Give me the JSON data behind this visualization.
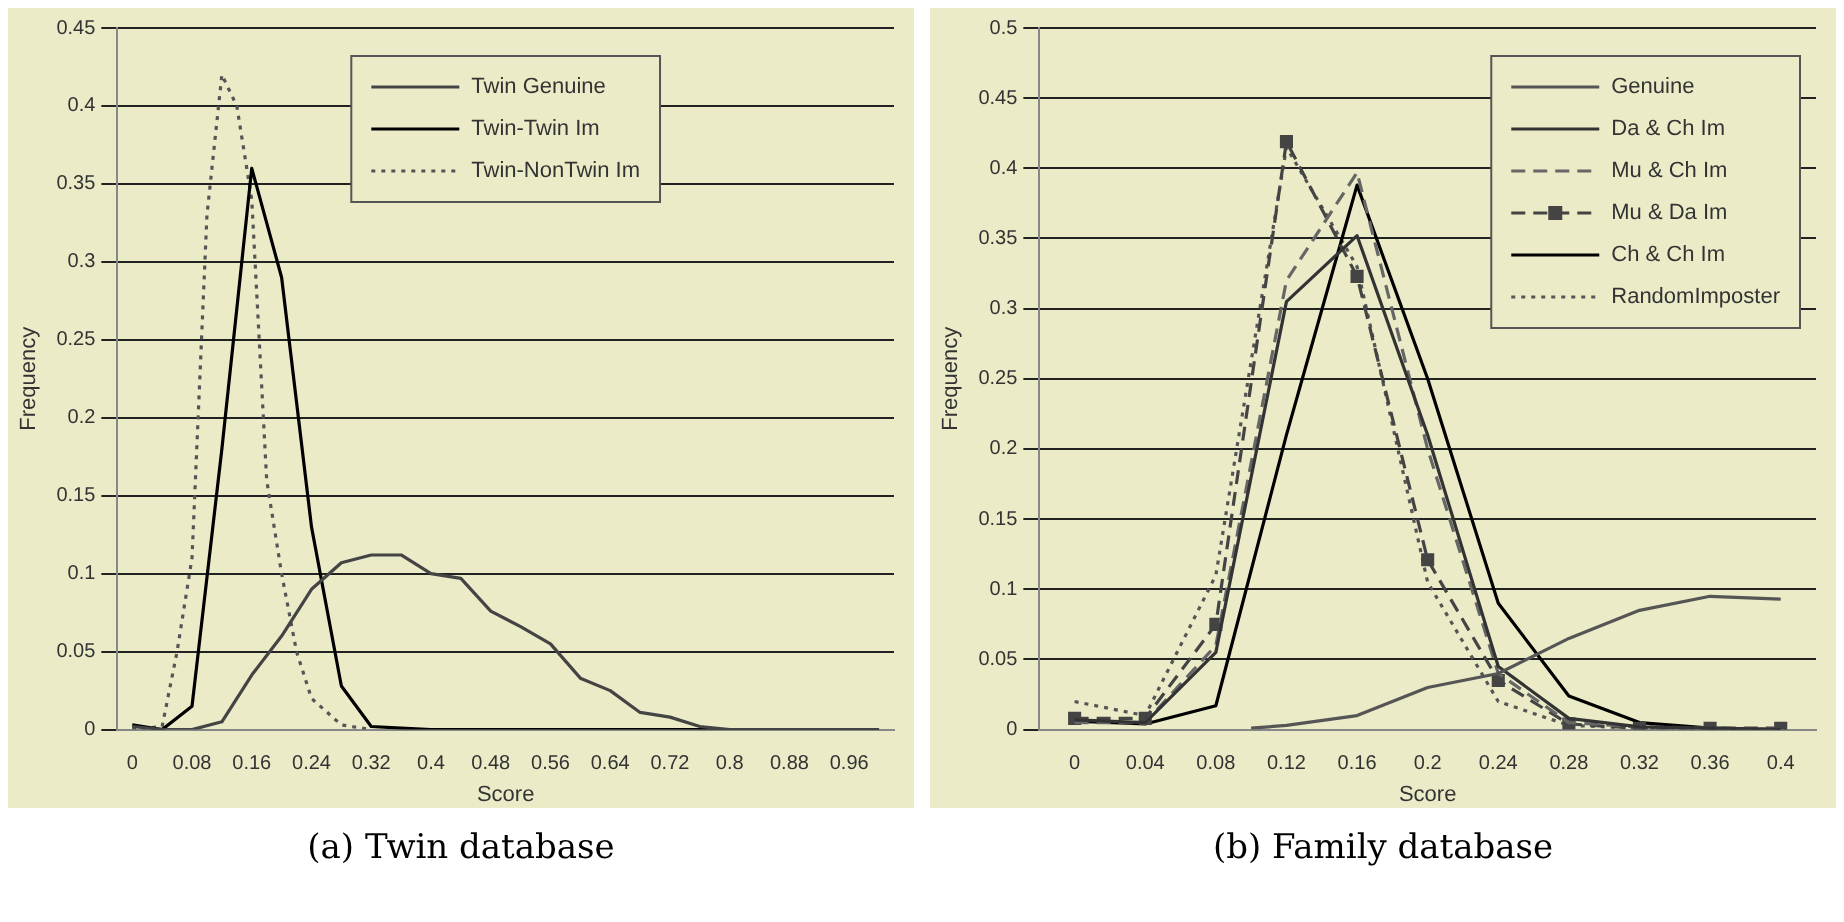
{
  "chart_data": [
    {
      "type": "line",
      "title": "(a) Twin database",
      "xlabel": "Score",
      "ylabel": "Frequency",
      "xlim": [
        -0.02,
        1.02
      ],
      "xticks": [
        0,
        0.08,
        0.16,
        0.24,
        0.32,
        0.4,
        0.48,
        0.56,
        0.64,
        0.72,
        0.8,
        0.88,
        0.96
      ],
      "ylim": [
        0,
        0.45
      ],
      "yticks": [
        0,
        0.05,
        0.1,
        0.15,
        0.2,
        0.25,
        0.3,
        0.35,
        0.4,
        0.45
      ],
      "grid": "y",
      "legend": "top",
      "marker": "none",
      "series": [
        {
          "name": "Twin Genuine",
          "color": "#444444",
          "line_style": "solid",
          "x": [
            0,
            0.04,
            0.08,
            0.12,
            0.16,
            0.2,
            0.24,
            0.28,
            0.32,
            0.36,
            0.4,
            0.44,
            0.48,
            0.52,
            0.56,
            0.6,
            0.64,
            0.68,
            0.72,
            0.76,
            0.8,
            0.88,
            0.96,
            1.0
          ],
          "values": [
            0.002,
            0,
            0,
            0.005,
            0.035,
            0.06,
            0.09,
            0.107,
            0.112,
            0.112,
            0.1,
            0.097,
            0.076,
            0.066,
            0.055,
            0.033,
            0.025,
            0.011,
            0.008,
            0.002,
            0,
            0,
            0,
            0
          ]
        },
        {
          "name": "Twin-Twin Im",
          "color": "#000000",
          "line_style": "solid",
          "x": [
            0,
            0.04,
            0.08,
            0.12,
            0.16,
            0.2,
            0.24,
            0.28,
            0.32,
            0.36,
            0.4,
            0.48,
            0.56,
            0.64,
            0.72,
            0.8,
            0.88,
            0.96,
            1.0
          ],
          "values": [
            0.003,
            0,
            0.015,
            0.18,
            0.36,
            0.29,
            0.13,
            0.028,
            0.002,
            0.001,
            0,
            0,
            0,
            0,
            0,
            0,
            0,
            0,
            0
          ]
        },
        {
          "name": "Twin-NonTwin Im",
          "color": "#555555",
          "line_style": "dotted",
          "x": [
            0,
            0.04,
            0.06,
            0.08,
            0.1,
            0.12,
            0.14,
            0.16,
            0.18,
            0.2,
            0.22,
            0.24,
            0.28,
            0.32
          ],
          "values": [
            0,
            0.002,
            0.05,
            0.11,
            0.33,
            0.42,
            0.4,
            0.34,
            0.16,
            0.1,
            0.05,
            0.02,
            0.003,
            0
          ]
        }
      ]
    },
    {
      "type": "line",
      "title": "(b) Family database",
      "xlabel": "Score",
      "ylabel": "Frequency",
      "xlim": [
        -0.02,
        0.42
      ],
      "xticks": [
        0,
        0.04,
        0.08,
        0.12,
        0.16,
        0.2,
        0.24,
        0.28,
        0.32,
        0.36,
        0.4
      ],
      "ylim": [
        0,
        0.5
      ],
      "yticks": [
        0,
        0.05,
        0.1,
        0.15,
        0.2,
        0.25,
        0.3,
        0.35,
        0.4,
        0.45,
        0.5
      ],
      "grid": "y",
      "legend": "top right",
      "marker": "none",
      "series": [
        {
          "name": "Genuine",
          "color": "#555555",
          "line_style": "solid",
          "x": [
            0.1,
            0.12,
            0.16,
            0.2,
            0.24,
            0.28,
            0.32,
            0.36,
            0.4
          ],
          "values": [
            0.001,
            0.003,
            0.01,
            0.03,
            0.04,
            0.065,
            0.085,
            0.095,
            0.093
          ]
        },
        {
          "name": "Da & Ch Im",
          "color": "#333333",
          "line_style": "solid",
          "x": [
            0,
            0.04,
            0.08,
            0.12,
            0.16,
            0.2,
            0.24,
            0.28,
            0.32,
            0.36,
            0.4
          ],
          "values": [
            0.007,
            0.005,
            0.055,
            0.305,
            0.352,
            0.21,
            0.045,
            0.008,
            0.002,
            0.001,
            0
          ]
        },
        {
          "name": "Mu & Ch Im",
          "color": "#666666",
          "line_style": "dashed",
          "x": [
            0,
            0.04,
            0.08,
            0.12,
            0.16,
            0.2,
            0.24,
            0.28,
            0.32,
            0.36,
            0.4
          ],
          "values": [
            0.005,
            0.005,
            0.06,
            0.32,
            0.397,
            0.2,
            0.04,
            0.005,
            0.002,
            0.001,
            0
          ]
        },
        {
          "name": "Mu & Da Im",
          "color": "#444444",
          "line_style": "dashed",
          "marker": "square",
          "x": [
            0,
            0.04,
            0.08,
            0.12,
            0.16,
            0.2,
            0.24,
            0.28,
            0.32,
            0.36,
            0.4
          ],
          "values": [
            0.008,
            0.008,
            0.075,
            0.419,
            0.323,
            0.121,
            0.035,
            0.004,
            0.001,
            0.001,
            0.001
          ]
        },
        {
          "name": "Ch & Ch Im",
          "color": "#000000",
          "line_style": "solid",
          "x": [
            0,
            0.04,
            0.08,
            0.12,
            0.16,
            0.2,
            0.24,
            0.28,
            0.32,
            0.36,
            0.4
          ],
          "values": [
            0.006,
            0.004,
            0.017,
            0.21,
            0.388,
            0.25,
            0.09,
            0.024,
            0.005,
            0.001,
            0
          ]
        },
        {
          "name": "RandomImposter",
          "color": "#555555",
          "line_style": "dotted",
          "x": [
            0,
            0.04,
            0.08,
            0.12,
            0.16,
            0.2,
            0.24,
            0.28,
            0.32,
            0.36,
            0.4
          ],
          "values": [
            0.02,
            0.01,
            0.11,
            0.415,
            0.33,
            0.105,
            0.02,
            0.003,
            0.001,
            0,
            0
          ]
        }
      ]
    }
  ]
}
